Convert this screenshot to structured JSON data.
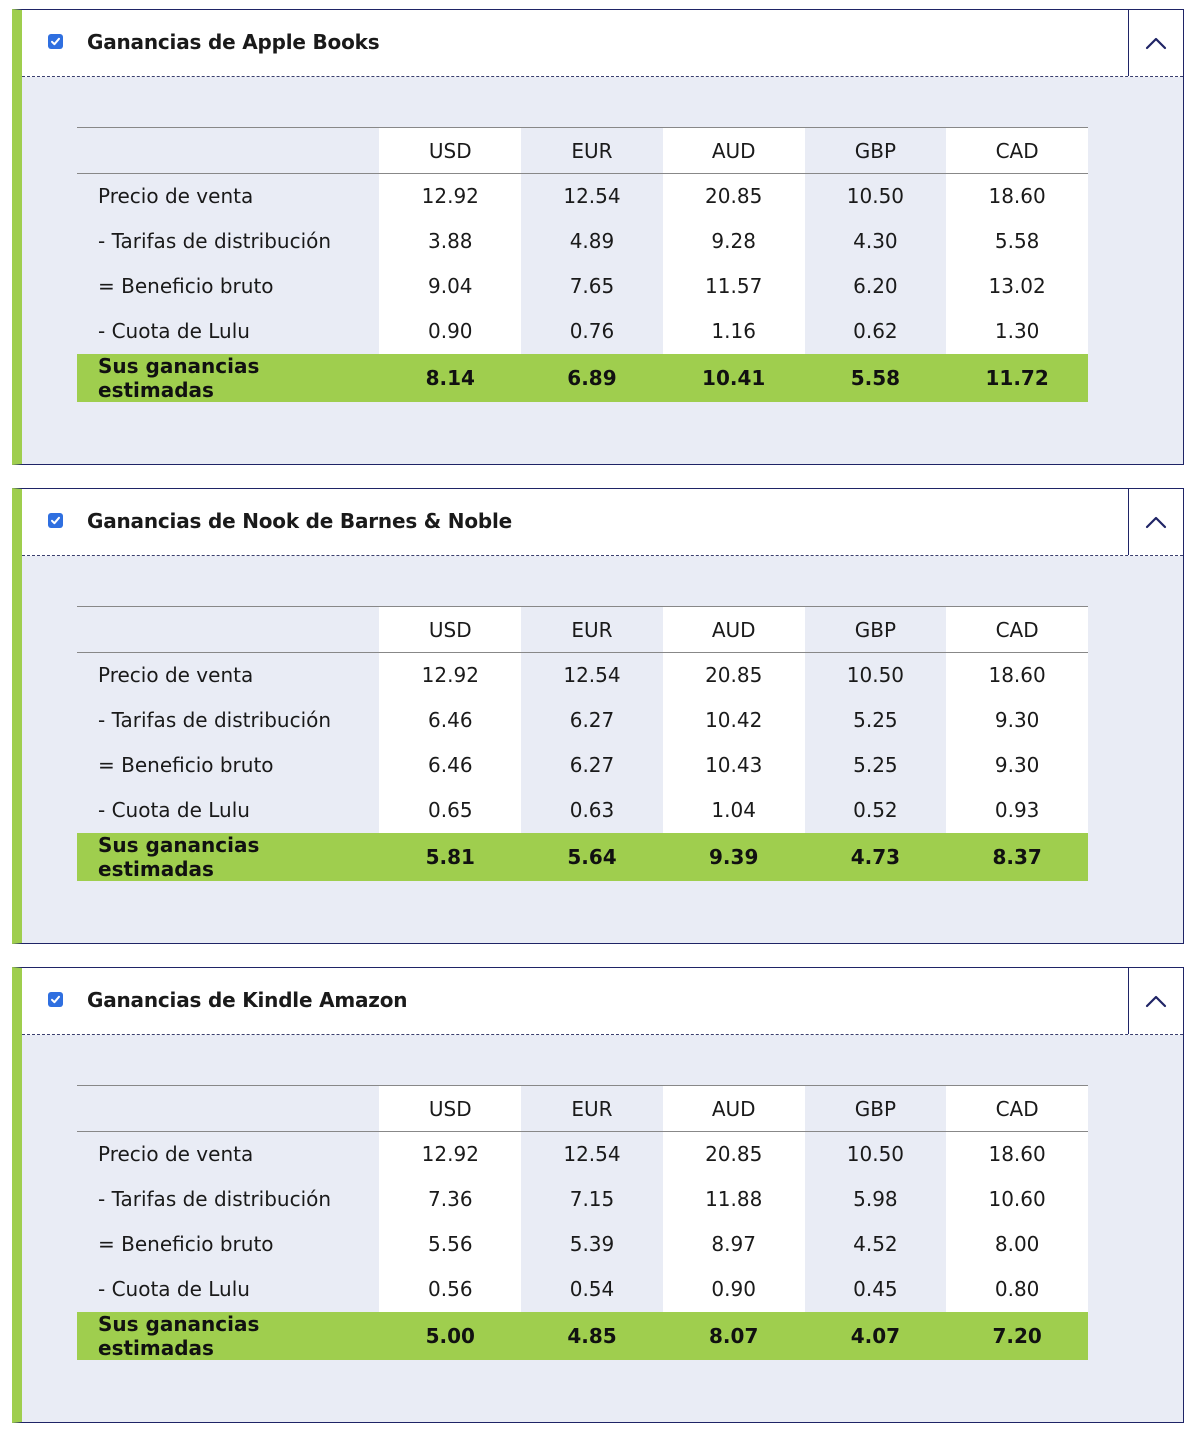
{
  "currencies": [
    "USD",
    "EUR",
    "AUD",
    "GBP",
    "CAD"
  ],
  "panels": [
    {
      "title": "Ganancias de Apple Books",
      "checked": true,
      "rows": [
        {
          "label": "Precio de venta",
          "values": [
            "12.92",
            "12.54",
            "20.85",
            "10.50",
            "18.60"
          ]
        },
        {
          "label": "- Tarifas de distribución",
          "values": [
            "3.88",
            "4.89",
            "9.28",
            "4.30",
            "5.58"
          ]
        },
        {
          "label": "= Beneficio bruto",
          "values": [
            "9.04",
            "7.65",
            "11.57",
            "6.20",
            "13.02"
          ]
        },
        {
          "label": "- Cuota de Lulu",
          "values": [
            "0.90",
            "0.76",
            "1.16",
            "0.62",
            "1.30"
          ]
        }
      ],
      "total": {
        "label": "Sus ganancias estimadas",
        "values": [
          "8.14",
          "6.89",
          "10.41",
          "5.58",
          "11.72"
        ]
      }
    },
    {
      "title": "Ganancias de Nook de Barnes & Noble",
      "checked": true,
      "rows": [
        {
          "label": "Precio de venta",
          "values": [
            "12.92",
            "12.54",
            "20.85",
            "10.50",
            "18.60"
          ]
        },
        {
          "label": "- Tarifas de distribución",
          "values": [
            "6.46",
            "6.27",
            "10.42",
            "5.25",
            "9.30"
          ]
        },
        {
          "label": "= Beneficio bruto",
          "values": [
            "6.46",
            "6.27",
            "10.43",
            "5.25",
            "9.30"
          ]
        },
        {
          "label": "- Cuota de Lulu",
          "values": [
            "0.65",
            "0.63",
            "1.04",
            "0.52",
            "0.93"
          ]
        }
      ],
      "total": {
        "label": "Sus ganancias estimadas",
        "values": [
          "5.81",
          "5.64",
          "9.39",
          "4.73",
          "8.37"
        ]
      }
    },
    {
      "title": "Ganancias de Kindle Amazon",
      "checked": true,
      "rows": [
        {
          "label": "Precio de venta",
          "values": [
            "12.92",
            "12.54",
            "20.85",
            "10.50",
            "18.60"
          ]
        },
        {
          "label": "- Tarifas de distribución",
          "values": [
            "7.36",
            "7.15",
            "11.88",
            "5.98",
            "10.60"
          ]
        },
        {
          "label": "= Beneficio bruto",
          "values": [
            "5.56",
            "5.39",
            "8.97",
            "4.52",
            "8.00"
          ]
        },
        {
          "label": "- Cuota de Lulu",
          "values": [
            "0.56",
            "0.54",
            "0.90",
            "0.45",
            "0.80"
          ]
        }
      ],
      "total": {
        "label": "Sus ganancias estimadas",
        "values": [
          "5.00",
          "4.85",
          "8.07",
          "4.07",
          "7.20"
        ]
      }
    }
  ],
  "icons": {
    "checkbox": "checkmark-icon",
    "collapse": "chevron-up-icon"
  },
  "colors": {
    "accent_green": "#9fce4e",
    "panel_bg": "#e9ecf5",
    "border_navy": "#1f2466",
    "checkbox_blue": "#2f6fe0"
  }
}
